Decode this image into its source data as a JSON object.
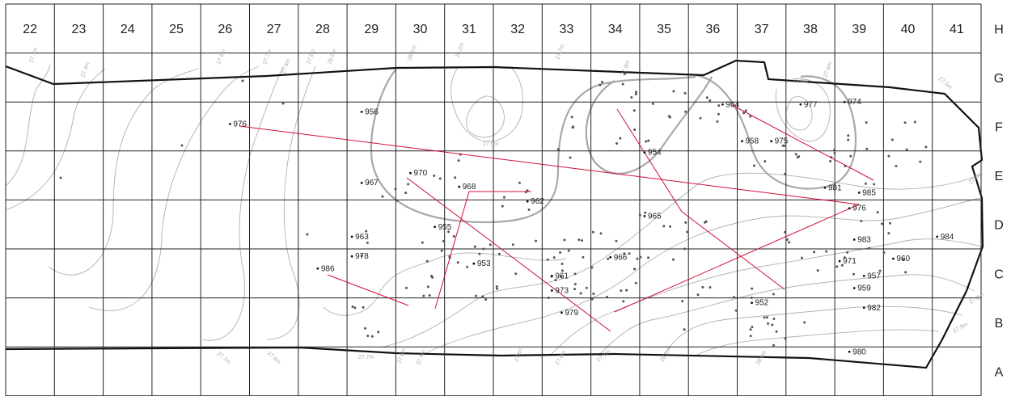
{
  "grid": {
    "columns": [
      "22",
      "23",
      "24",
      "25",
      "26",
      "27",
      "28",
      "29",
      "30",
      "31",
      "32",
      "33",
      "34",
      "35",
      "36",
      "37",
      "38",
      "39",
      "40",
      "41"
    ],
    "rows": [
      "H",
      "G",
      "F",
      "E",
      "D",
      "C",
      "B",
      "A"
    ]
  },
  "colors": {
    "grid_line": "#222222",
    "boundary": "#111111",
    "contour": "#b0b0b0",
    "contour_bold": "#a8a8a8",
    "join_line": "#d0103a",
    "point": "#555555"
  },
  "features": [
    {
      "label": "956",
      "col": 29.2,
      "row": 2.25
    },
    {
      "label": "976",
      "col": 26.5,
      "row": 2.5
    },
    {
      "label": "964",
      "col": 36.6,
      "row": 2.1
    },
    {
      "label": "977",
      "col": 38.2,
      "row": 2.1
    },
    {
      "label": "974",
      "col": 39.1,
      "row": 2.05
    },
    {
      "label": "954",
      "col": 35.0,
      "row": 3.08
    },
    {
      "label": "958",
      "col": 37.0,
      "row": 2.85
    },
    {
      "label": "975",
      "col": 37.6,
      "row": 2.85
    },
    {
      "label": "967",
      "col": 29.2,
      "row": 3.7
    },
    {
      "label": "970",
      "col": 30.2,
      "row": 3.5
    },
    {
      "label": "968",
      "col": 31.2,
      "row": 3.78
    },
    {
      "label": "962",
      "col": 32.6,
      "row": 4.08
    },
    {
      "label": "981",
      "col": 38.7,
      "row": 3.8
    },
    {
      "label": "985",
      "col": 39.4,
      "row": 3.9
    },
    {
      "label": "976",
      "col": 39.2,
      "row": 4.22
    },
    {
      "label": "965",
      "col": 35.0,
      "row": 4.38
    },
    {
      "label": "955",
      "col": 30.7,
      "row": 4.6
    },
    {
      "label": "963",
      "col": 29.0,
      "row": 4.8
    },
    {
      "label": "983",
      "col": 39.3,
      "row": 4.86
    },
    {
      "label": "984",
      "col": 41.0,
      "row": 4.8
    },
    {
      "label": "978",
      "col": 29.0,
      "row": 5.2
    },
    {
      "label": "971",
      "col": 39.0,
      "row": 5.3
    },
    {
      "label": "960",
      "col": 40.1,
      "row": 5.25
    },
    {
      "label": "953",
      "col": 31.5,
      "row": 5.35
    },
    {
      "label": "966",
      "col": 34.3,
      "row": 5.22
    },
    {
      "label": "986",
      "col": 28.3,
      "row": 5.45
    },
    {
      "label": "961",
      "col": 33.1,
      "row": 5.6
    },
    {
      "label": "957",
      "col": 39.5,
      "row": 5.6
    },
    {
      "label": "959",
      "col": 39.3,
      "row": 5.85
    },
    {
      "label": "973",
      "col": 33.1,
      "row": 5.9
    },
    {
      "label": "952",
      "col": 37.2,
      "row": 6.15
    },
    {
      "label": "982",
      "col": 39.5,
      "row": 6.25
    },
    {
      "label": "979",
      "col": 33.3,
      "row": 6.35
    },
    {
      "label": "980",
      "col": 39.2,
      "row": 7.15
    }
  ],
  "join_lines": [
    {
      "from": "976 (E-F)",
      "to": "976 (D)"
    },
    {
      "from": "970",
      "to": "979"
    },
    {
      "from": "968",
      "to": "962"
    },
    {
      "from": "968",
      "to": "986 end"
    },
    {
      "from": "986",
      "to": "979"
    },
    {
      "from": "964",
      "to": "985"
    },
    {
      "from": "954 line",
      "to": "965"
    },
    {
      "from": "965",
      "to": "952"
    },
    {
      "from": "976",
      "to": "979"
    }
  ],
  "contour_labels": [
    "27.3m",
    "27.4m",
    "27.6m",
    "27.7m",
    "27.8m",
    "27.9m",
    "28.0m",
    "28.1m",
    "28.2m",
    "27.6m",
    "27.7m",
    "27.8m",
    "27.6m",
    "27.7m",
    "27.6m",
    "27.7m",
    "27.6m",
    "27.5m",
    "27.6m",
    "27.8m",
    "27.7m",
    "28.1m",
    "28.0m",
    "27.9m",
    "27.8m",
    "27.6m",
    "27.5m",
    "27.8m"
  ]
}
